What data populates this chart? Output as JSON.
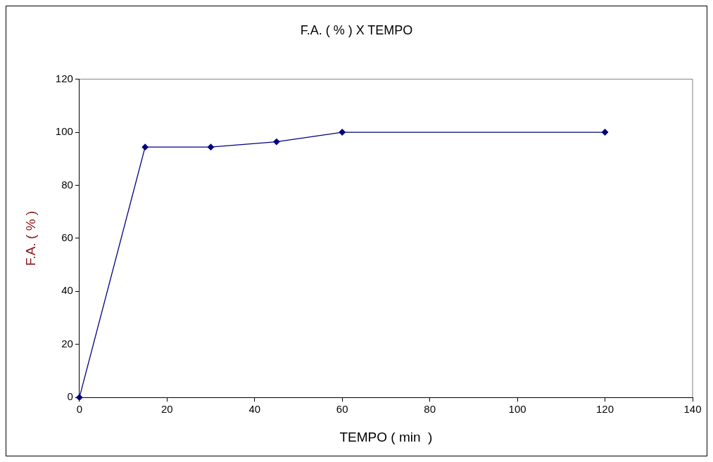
{
  "chart_data": {
    "type": "line",
    "title": "F.A. ( % ) X TEMPO",
    "xlabel": "TEMPO ( min  )",
    "ylabel": "F.A. ( % )",
    "x": [
      0,
      15,
      30,
      45,
      60,
      120
    ],
    "series": [
      {
        "color": "#000080",
        "values": [
          0,
          94.4,
          94.4,
          96.4,
          100,
          100
        ]
      }
    ],
    "xlim": [
      0,
      140
    ],
    "xticks": [
      0,
      20,
      40,
      60,
      80,
      100,
      120,
      140
    ],
    "ylim": [
      0,
      120
    ],
    "yticks": [
      0,
      20,
      40,
      60,
      80,
      100,
      120
    ],
    "marker": "diamond",
    "line_style": "solid",
    "grid": false,
    "legend": false
  }
}
